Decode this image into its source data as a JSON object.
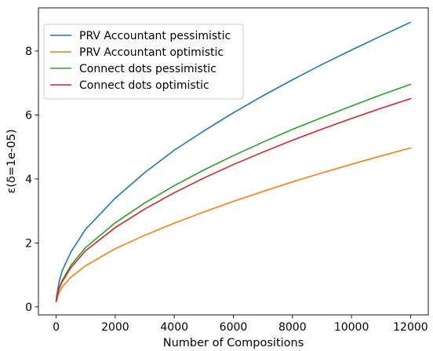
{
  "chart_data": {
    "type": "line",
    "title": "",
    "xlabel": "Number of Compositions",
    "ylabel": "ε(δ=1e-05)",
    "xlim": [
      -600,
      12600
    ],
    "ylim": [
      -0.25,
      9.35
    ],
    "xticks": [
      0,
      2000,
      4000,
      6000,
      8000,
      10000,
      12000
    ],
    "yticks": [
      0,
      2,
      4,
      6,
      8
    ],
    "grid": false,
    "legend_position": "top-left",
    "x": [
      1,
      50,
      100,
      200,
      500,
      1000,
      2000,
      3000,
      4000,
      5000,
      6000,
      7000,
      8000,
      9000,
      10000,
      11000,
      12000
    ],
    "series": [
      {
        "name": "PRV Accountant pessimistic",
        "color": "#1f77b4",
        "values": [
          0.24,
          0.52,
          0.78,
          1.12,
          1.72,
          2.43,
          3.4,
          4.2,
          4.9,
          5.5,
          6.07,
          6.6,
          7.1,
          7.58,
          8.03,
          8.47,
          8.9
        ]
      },
      {
        "name": "PRV Accountant optimistic",
        "color": "#ff7f0e",
        "values": [
          0.16,
          0.32,
          0.45,
          0.62,
          0.93,
          1.29,
          1.82,
          2.24,
          2.62,
          2.97,
          3.3,
          3.61,
          3.91,
          4.19,
          4.46,
          4.72,
          4.97
        ]
      },
      {
        "name": "Connect dots pessimistic",
        "color": "#2ca02c",
        "values": [
          0.18,
          0.43,
          0.6,
          0.82,
          1.3,
          1.86,
          2.63,
          3.25,
          3.79,
          4.28,
          4.73,
          5.15,
          5.55,
          5.92,
          6.28,
          6.63,
          6.96
        ]
      },
      {
        "name": "Connect dots optimistic",
        "color": "#d62728",
        "values": [
          0.17,
          0.4,
          0.57,
          0.78,
          1.23,
          1.76,
          2.48,
          3.06,
          3.57,
          4.03,
          4.45,
          4.84,
          5.21,
          5.56,
          5.89,
          6.21,
          6.51
        ]
      }
    ]
  }
}
